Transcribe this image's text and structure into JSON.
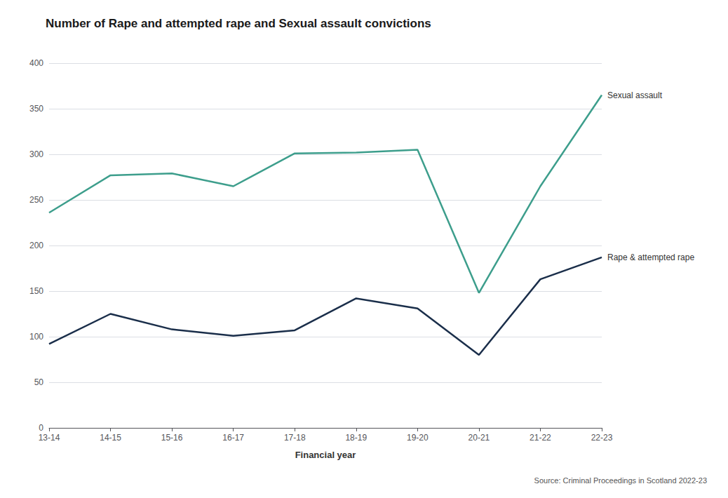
{
  "chart_data": {
    "type": "line",
    "title": "Number of Rape and attempted rape and Sexual assault convictions",
    "xlabel": "Financial year",
    "source": "Source: Criminal Proceedings in Scotland 2022-23",
    "categories": [
      "13-14",
      "14-15",
      "15-16",
      "16-17",
      "17-18",
      "18-19",
      "19-20",
      "20-21",
      "21-22",
      "22-23"
    ],
    "series": [
      {
        "name": "Sexual assault",
        "color": "#3d9e8c",
        "values": [
          236,
          277,
          279,
          265,
          301,
          302,
          305,
          148,
          265,
          365
        ]
      },
      {
        "name": "Rape & attempted rape",
        "color": "#1a2e4a",
        "values": [
          92,
          125,
          108,
          101,
          107,
          142,
          131,
          80,
          163,
          187
        ]
      }
    ],
    "ylim": [
      0,
      400
    ],
    "yticks": [
      0,
      50,
      100,
      150,
      200,
      250,
      300,
      350,
      400
    ],
    "grid": true
  }
}
